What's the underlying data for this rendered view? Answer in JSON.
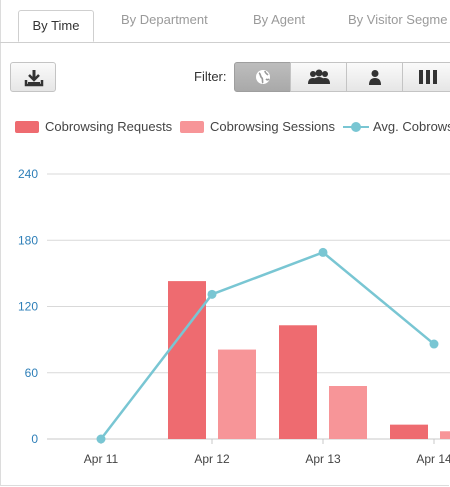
{
  "tabs": [
    {
      "label": "By Time"
    },
    {
      "label": "By Department"
    },
    {
      "label": "By Agent"
    },
    {
      "label": "By Visitor Segme"
    }
  ],
  "toolbar": {
    "download_icon": "download-icon",
    "filter_label": "Filter:",
    "filters": [
      {
        "icon": "globe-icon",
        "active": true
      },
      {
        "icon": "group-icon",
        "active": false
      },
      {
        "icon": "person-icon",
        "active": false
      },
      {
        "icon": "columns-icon",
        "active": false
      }
    ]
  },
  "legend": [
    {
      "label": "Cobrowsing Requests",
      "color": "#ee6b70"
    },
    {
      "label": "Cobrowsing Sessions",
      "color": "#f79598"
    },
    {
      "label": "Avg. Cobrows",
      "color": "#79c6d3"
    }
  ],
  "chart_data": {
    "type": "bar",
    "categories": [
      "Apr 11",
      "Apr 12",
      "Apr 13",
      "Apr 14"
    ],
    "series": [
      {
        "name": "Cobrowsing Requests",
        "type": "bar",
        "color": "#ee6b70",
        "values": [
          0,
          143,
          103,
          13
        ]
      },
      {
        "name": "Cobrowsing Sessions",
        "type": "bar",
        "color": "#f79598",
        "values": [
          0,
          81,
          48,
          7
        ]
      },
      {
        "name": "Avg. Cobrows",
        "type": "line",
        "color": "#79c6d3",
        "values": [
          0,
          131,
          169,
          86
        ]
      }
    ],
    "y_ticks": [
      "0",
      "60",
      "120",
      "180",
      "240"
    ],
    "ylim": [
      0,
      240
    ],
    "grid": true,
    "legend_position": "top-left",
    "tick_color": "#2e7fb8",
    "grid_color": "#d9d9d9"
  }
}
